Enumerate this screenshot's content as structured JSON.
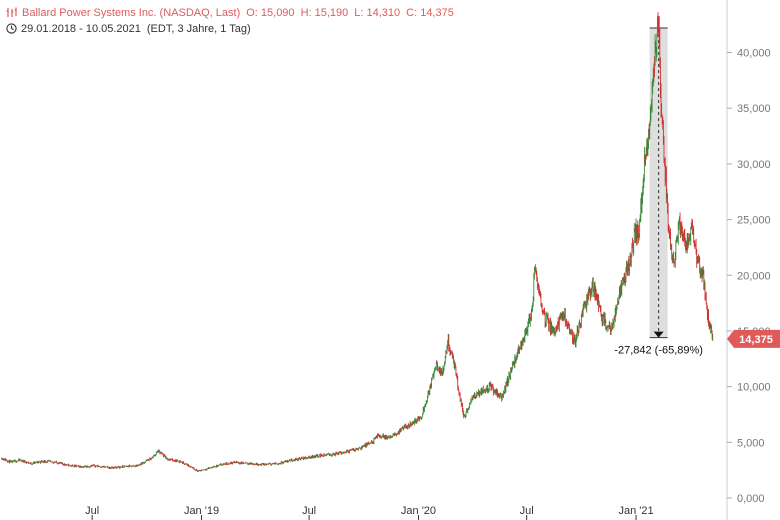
{
  "header": {
    "instrument": "Ballard Power Systems Inc. (NASDAQ, Last)",
    "open": "O: 15,090",
    "high": "H: 15,190",
    "low": "L: 14,310",
    "close": "C: 14,375",
    "date_range": "29.01.2018 - 10.05.2021",
    "meta": "(EDT, 3 Jahre, 1 Tag)",
    "icons": [
      "bars-icon",
      "clock-icon"
    ]
  },
  "annotation": {
    "text": "-27,842 (-65,89%)",
    "from_value": 42.2,
    "to_value": 14.4,
    "date": "2021-02-08"
  },
  "last_price": {
    "label": "14,375",
    "value": 14.375,
    "color": "#e05a5a"
  },
  "chart_data": {
    "type": "candlestick",
    "title": "Ballard Power Systems Inc. (NASDAQ, Last)",
    "x_range": [
      "2018-01-29",
      "2021-05-10"
    ],
    "ylim": [
      0,
      44
    ],
    "yticks": [
      {
        "value": 0,
        "label": "0,000"
      },
      {
        "value": 5,
        "label": "5,000"
      },
      {
        "value": 10,
        "label": "10,000"
      },
      {
        "value": 15,
        "label": "15,000"
      },
      {
        "value": 20,
        "label": "20,000"
      },
      {
        "value": 25,
        "label": "25,000"
      },
      {
        "value": 30,
        "label": "30,000"
      },
      {
        "value": 35,
        "label": "35,000"
      },
      {
        "value": 40,
        "label": "40,000"
      }
    ],
    "xticks": [
      {
        "date": "2018-07-01",
        "label": "Jul"
      },
      {
        "date": "2019-01-01",
        "label": "Jan '19"
      },
      {
        "date": "2019-07-01",
        "label": "Jul"
      },
      {
        "date": "2020-01-01",
        "label": "Jan '20"
      },
      {
        "date": "2020-07-01",
        "label": "Jul"
      },
      {
        "date": "2021-01-01",
        "label": "Jan '21"
      }
    ],
    "grid": true,
    "colors": {
      "up": "#3a8a3a",
      "down": "#d03030"
    },
    "series": [
      {
        "points": [
          [
            "2018-01-29",
            3.6
          ],
          [
            "2018-02-15",
            3.2
          ],
          [
            "2018-03-01",
            3.4
          ],
          [
            "2018-03-20",
            3.1
          ],
          [
            "2018-04-10",
            3.3
          ],
          [
            "2018-05-01",
            3.2
          ],
          [
            "2018-05-25",
            2.9
          ],
          [
            "2018-06-15",
            2.8
          ],
          [
            "2018-07-05",
            2.9
          ],
          [
            "2018-08-01",
            2.7
          ],
          [
            "2018-08-20",
            2.8
          ],
          [
            "2018-09-15",
            2.9
          ],
          [
            "2018-10-10",
            3.6
          ],
          [
            "2018-10-20",
            4.2
          ],
          [
            "2018-11-05",
            3.5
          ],
          [
            "2018-11-25",
            3.3
          ],
          [
            "2018-12-15",
            2.8
          ],
          [
            "2018-12-26",
            2.4
          ],
          [
            "2019-01-15",
            2.7
          ],
          [
            "2019-02-05",
            3.0
          ],
          [
            "2019-02-25",
            3.2
          ],
          [
            "2019-03-20",
            3.1
          ],
          [
            "2019-04-15",
            3.0
          ],
          [
            "2019-05-10",
            3.1
          ],
          [
            "2019-06-01",
            3.4
          ],
          [
            "2019-06-25",
            3.6
          ],
          [
            "2019-07-15",
            3.8
          ],
          [
            "2019-08-10",
            3.9
          ],
          [
            "2019-09-05",
            4.2
          ],
          [
            "2019-09-25",
            4.5
          ],
          [
            "2019-10-15",
            5.0
          ],
          [
            "2019-10-25",
            5.6
          ],
          [
            "2019-11-15",
            5.4
          ],
          [
            "2019-12-05",
            6.2
          ],
          [
            "2019-12-20",
            6.7
          ],
          [
            "2020-01-05",
            7.2
          ],
          [
            "2020-01-20",
            9.8
          ],
          [
            "2020-01-30",
            12.0
          ],
          [
            "2020-02-10",
            11.0
          ],
          [
            "2020-02-20",
            14.0
          ],
          [
            "2020-03-01",
            12.0
          ],
          [
            "2020-03-10",
            9.2
          ],
          [
            "2020-03-18",
            7.2
          ],
          [
            "2020-04-01",
            9.0
          ],
          [
            "2020-04-15",
            9.6
          ],
          [
            "2020-05-01",
            10.0
          ],
          [
            "2020-05-20",
            9.0
          ],
          [
            "2020-06-05",
            11.5
          ],
          [
            "2020-06-20",
            13.5
          ],
          [
            "2020-07-01",
            15.2
          ],
          [
            "2020-07-10",
            16.5
          ],
          [
            "2020-07-15",
            21.0
          ],
          [
            "2020-07-20",
            19.0
          ],
          [
            "2020-08-01",
            16.2
          ],
          [
            "2020-08-15",
            15.0
          ],
          [
            "2020-09-01",
            16.5
          ],
          [
            "2020-09-20",
            14.0
          ],
          [
            "2020-10-05",
            17.0
          ],
          [
            "2020-10-20",
            19.2
          ],
          [
            "2020-11-05",
            16.2
          ],
          [
            "2020-11-20",
            15.0
          ],
          [
            "2020-12-05",
            18.5
          ],
          [
            "2020-12-20",
            21.0
          ],
          [
            "2020-12-31",
            24.0
          ],
          [
            "2021-01-05",
            23.5
          ],
          [
            "2021-01-15",
            30.0
          ],
          [
            "2021-01-25",
            34.0
          ],
          [
            "2021-02-01",
            40.0
          ],
          [
            "2021-02-08",
            42.2
          ],
          [
            "2021-02-12",
            35.0
          ],
          [
            "2021-02-18",
            30.0
          ],
          [
            "2021-02-25",
            24.0
          ],
          [
            "2021-03-05",
            21.0
          ],
          [
            "2021-03-15",
            25.0
          ],
          [
            "2021-03-25",
            22.5
          ],
          [
            "2021-04-05",
            24.0
          ],
          [
            "2021-04-15",
            21.0
          ],
          [
            "2021-04-25",
            19.5
          ],
          [
            "2021-05-01",
            16.5
          ],
          [
            "2021-05-10",
            14.375
          ]
        ]
      }
    ]
  }
}
